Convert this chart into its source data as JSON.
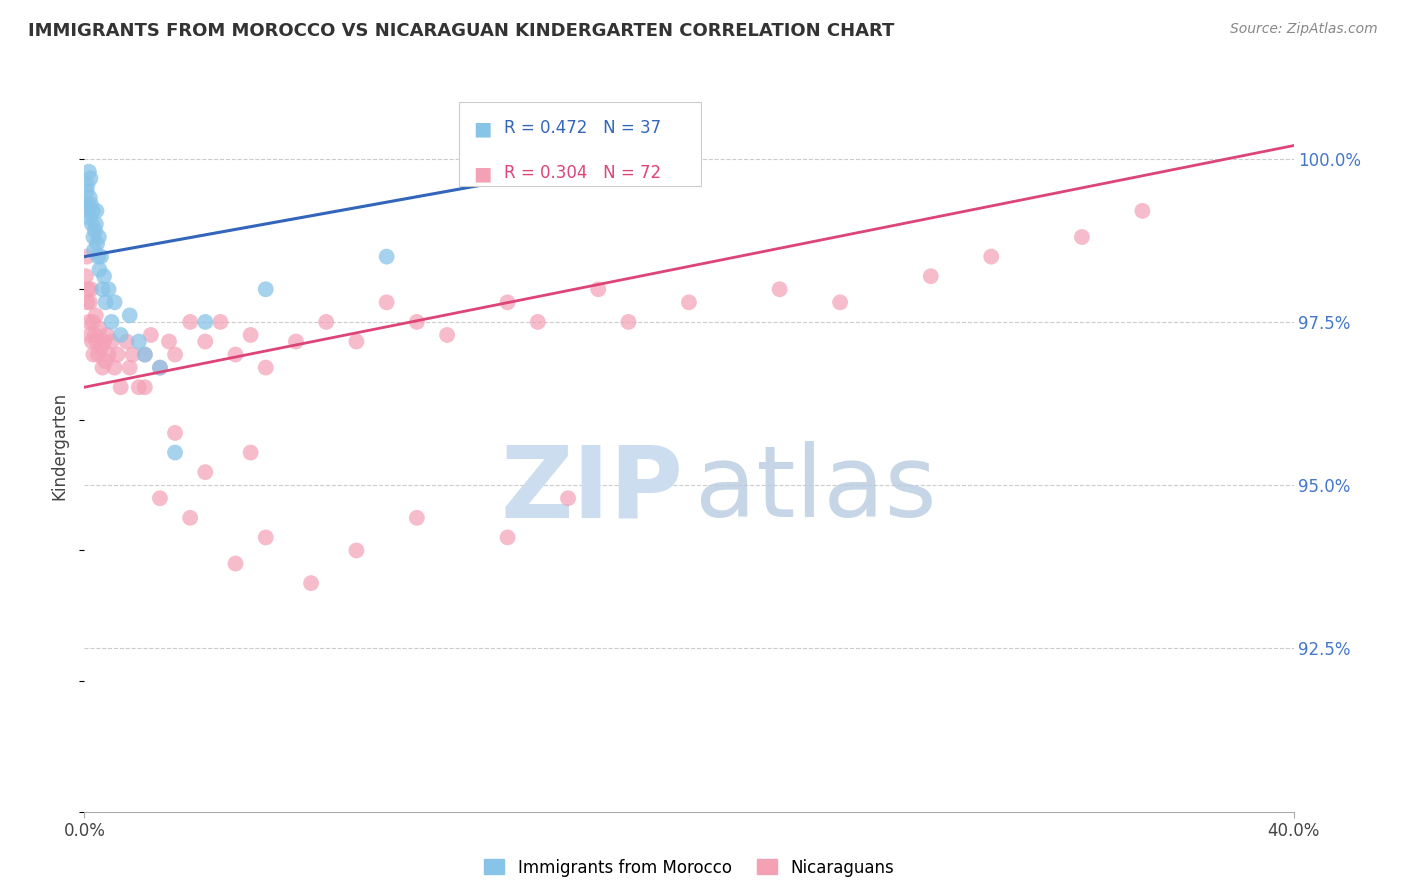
{
  "title": "IMMIGRANTS FROM MOROCCO VS NICARAGUAN KINDERGARTEN CORRELATION CHART",
  "source": "Source: ZipAtlas.com",
  "ylabel": "Kindergarten",
  "ytick_vals": [
    92.5,
    95.0,
    97.5,
    100.0
  ],
  "ytick_labels": [
    "92.5%",
    "95.0%",
    "97.5%",
    "100.0%"
  ],
  "xlim": [
    0.0,
    40.0
  ],
  "ylim": [
    90.0,
    101.2
  ],
  "legend_label_blue": "Immigrants from Morocco",
  "legend_label_pink": "Nicaraguans",
  "blue_color": "#88c4e8",
  "pink_color": "#f4a0b5",
  "blue_line_color": "#3366bb",
  "pink_line_color": "#dd4477",
  "blue_r": 0.472,
  "blue_n": 37,
  "pink_r": 0.304,
  "pink_n": 72,
  "bg_color": "#ffffff",
  "grid_color": "#cccccc",
  "blue_x": [
    0.05,
    0.08,
    0.1,
    0.12,
    0.15,
    0.15,
    0.18,
    0.2,
    0.22,
    0.25,
    0.28,
    0.3,
    0.32,
    0.35,
    0.38,
    0.4,
    0.42,
    0.45,
    0.48,
    0.5,
    0.55,
    0.6,
    0.65,
    0.7,
    0.8,
    0.9,
    1.0,
    1.2,
    1.5,
    1.8,
    2.0,
    2.5,
    3.0,
    4.0,
    6.0,
    10.0,
    17.0
  ],
  "blue_y": [
    99.3,
    99.5,
    99.6,
    99.2,
    99.8,
    99.1,
    99.4,
    99.7,
    99.3,
    99.0,
    99.2,
    98.8,
    98.6,
    98.9,
    99.0,
    99.2,
    98.7,
    98.5,
    98.8,
    98.3,
    98.5,
    98.0,
    98.2,
    97.8,
    98.0,
    97.5,
    97.8,
    97.3,
    97.6,
    97.2,
    97.0,
    96.8,
    95.5,
    97.5,
    98.0,
    98.5,
    99.8
  ],
  "pink_x": [
    0.05,
    0.08,
    0.1,
    0.12,
    0.15,
    0.18,
    0.2,
    0.22,
    0.25,
    0.28,
    0.3,
    0.35,
    0.38,
    0.4,
    0.45,
    0.5,
    0.55,
    0.6,
    0.65,
    0.7,
    0.75,
    0.8,
    0.9,
    1.0,
    1.1,
    1.2,
    1.4,
    1.5,
    1.6,
    1.8,
    2.0,
    2.2,
    2.5,
    2.8,
    3.0,
    3.5,
    4.0,
    4.5,
    5.0,
    5.5,
    6.0,
    7.0,
    8.0,
    9.0,
    10.0,
    11.0,
    12.0,
    14.0,
    15.0,
    17.0,
    18.0,
    20.0,
    23.0,
    25.0,
    28.0,
    30.0,
    33.0,
    35.0,
    2.5,
    3.5,
    5.0,
    6.0,
    7.5,
    9.0,
    11.0,
    14.0,
    16.0,
    20.0,
    2.0,
    3.0,
    4.0,
    5.5
  ],
  "pink_y": [
    98.2,
    98.5,
    97.8,
    98.0,
    97.5,
    97.8,
    97.3,
    98.0,
    97.2,
    97.5,
    97.0,
    97.3,
    97.6,
    97.2,
    97.0,
    97.4,
    97.1,
    96.8,
    97.2,
    96.9,
    97.3,
    97.0,
    97.2,
    96.8,
    97.0,
    96.5,
    97.2,
    96.8,
    97.0,
    96.5,
    97.0,
    97.3,
    96.8,
    97.2,
    97.0,
    97.5,
    97.2,
    97.5,
    97.0,
    97.3,
    96.8,
    97.2,
    97.5,
    97.2,
    97.8,
    97.5,
    97.3,
    97.8,
    97.5,
    98.0,
    97.5,
    97.8,
    98.0,
    97.8,
    98.2,
    98.5,
    98.8,
    99.2,
    94.8,
    94.5,
    93.8,
    94.2,
    93.5,
    94.0,
    94.5,
    94.2,
    94.8,
    100.2,
    96.5,
    95.8,
    95.2,
    95.5
  ],
  "watermark_zip_color": "#ccddf0",
  "watermark_atlas_color": "#b8cce0"
}
